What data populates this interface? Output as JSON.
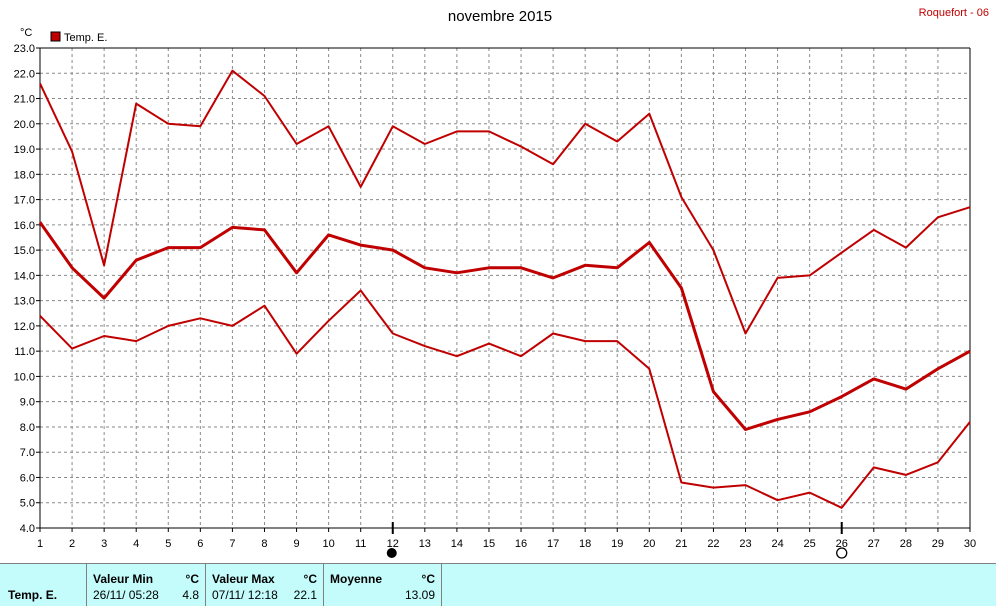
{
  "header": {
    "title": "novembre 2015",
    "station": "Roquefort - 06"
  },
  "chart_data": {
    "type": "line",
    "title": "novembre 2015",
    "ylabel": "°C",
    "xlabel": "",
    "x": [
      1,
      2,
      3,
      4,
      5,
      6,
      7,
      8,
      9,
      10,
      11,
      12,
      13,
      14,
      15,
      16,
      17,
      18,
      19,
      20,
      21,
      22,
      23,
      24,
      25,
      26,
      27,
      28,
      29,
      30
    ],
    "xlim": [
      1,
      30
    ],
    "ylim": [
      4.0,
      23.0
    ],
    "y_ticks": [
      "4.0",
      "5.0",
      "6.0",
      "7.0",
      "8.0",
      "9.0",
      "10.0",
      "11.0",
      "12.0",
      "13.0",
      "14.0",
      "15.0",
      "16.0",
      "17.0",
      "18.0",
      "19.0",
      "20.0",
      "21.0",
      "22.0",
      "23.0"
    ],
    "grid": true,
    "legend": {
      "position": "top-left",
      "label": "Temp. E.",
      "color": "#c00000"
    },
    "series": [
      {
        "values": [
          21.6,
          18.9,
          14.4,
          20.8,
          20.0,
          19.9,
          22.1,
          21.1,
          19.2,
          19.9,
          17.5,
          19.9,
          19.2,
          19.7,
          19.7,
          19.1,
          18.4,
          20.0,
          19.3,
          20.4,
          17.1,
          15.0,
          11.7,
          13.9,
          14.0,
          14.9,
          15.8,
          15.1,
          16.3,
          16.7
        ],
        "stroke": 2
      },
      {
        "values": [
          16.1,
          14.3,
          13.1,
          14.6,
          15.1,
          15.1,
          15.9,
          15.8,
          14.1,
          15.6,
          15.2,
          15.0,
          14.3,
          14.1,
          14.3,
          14.3,
          13.9,
          14.4,
          14.3,
          15.3,
          13.5,
          9.4,
          7.9,
          8.3,
          8.6,
          9.2,
          9.9,
          9.5,
          10.3,
          11.0
        ],
        "stroke": 3
      },
      {
        "values": [
          12.4,
          11.1,
          11.6,
          11.4,
          12.0,
          12.3,
          12.0,
          12.8,
          10.9,
          12.2,
          13.4,
          11.7,
          11.2,
          10.8,
          11.3,
          10.8,
          11.7,
          11.4,
          11.4,
          10.3,
          5.8,
          5.6,
          5.7,
          5.1,
          5.4,
          4.8,
          6.4,
          6.1,
          6.6,
          8.2
        ],
        "stroke": 2
      }
    ],
    "moon_phases": [
      {
        "day": 12,
        "phase": "new-moon"
      },
      {
        "day": 26,
        "phase": "full-moon"
      }
    ]
  },
  "stats": {
    "row_label": "Temp. E.",
    "min": {
      "header": "Valeur Min",
      "unit": "°C",
      "date": "26/11/ 05:28",
      "value": "4.8"
    },
    "max": {
      "header": "Valeur Max",
      "unit": "°C",
      "date": "07/11/ 12:18",
      "value": "22.1"
    },
    "avg": {
      "header": "Moyenne",
      "unit": "°C",
      "value": "13.09"
    }
  }
}
